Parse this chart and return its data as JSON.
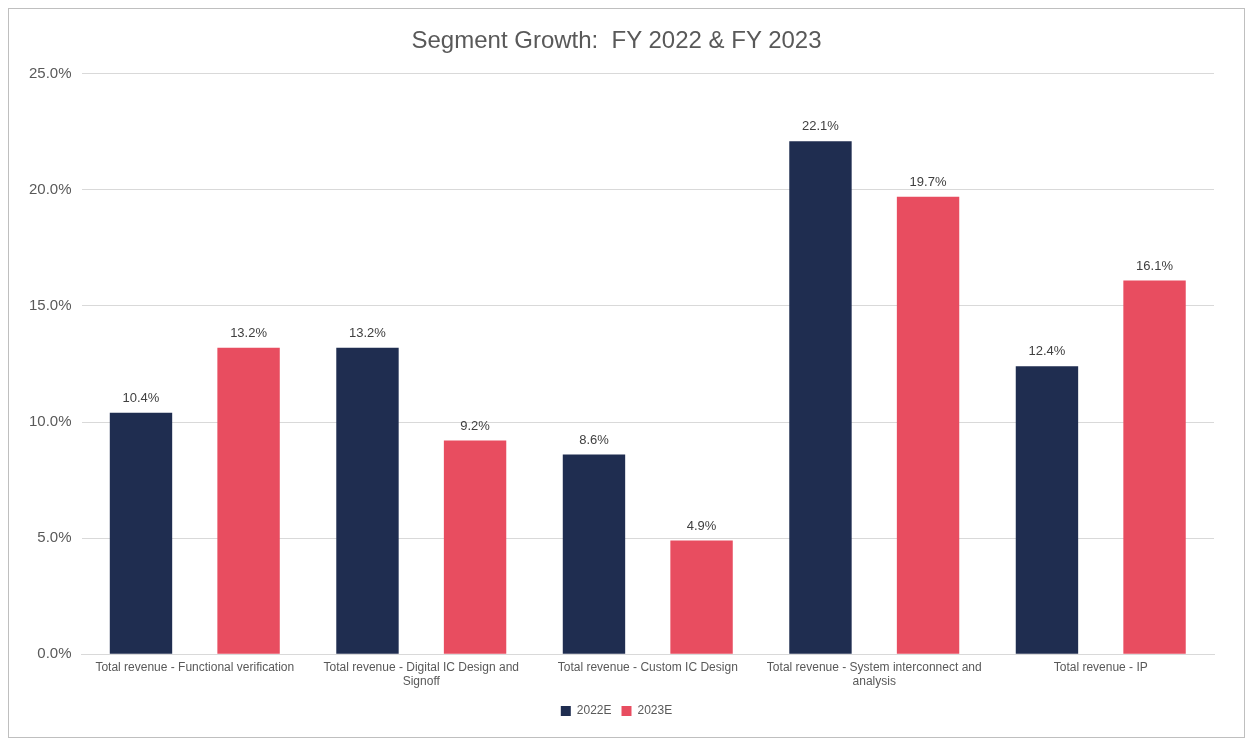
{
  "chart_data": {
    "type": "bar",
    "title": "Segment Growth:  FY 2022 & FY 2023",
    "categories": [
      "Total revenue - Functional verification",
      "Total revenue - Digital IC Design and Signoff",
      "Total revenue - Custom IC Design",
      "Total revenue - System interconnect and analysis",
      "Total revenue - IP"
    ],
    "series": [
      {
        "name": "2022E",
        "color": "#1f2d50",
        "values": [
          10.4,
          13.2,
          8.6,
          22.1,
          12.4
        ],
        "value_labels": [
          "10.4%",
          "13.2%",
          "8.6%",
          "22.1%",
          "12.4%"
        ]
      },
      {
        "name": "2023E",
        "color": "#e84d60",
        "values": [
          13.2,
          9.2,
          4.9,
          19.7,
          16.1
        ],
        "value_labels": [
          "13.2%",
          "9.2%",
          "4.9%",
          "19.7%",
          "16.1%"
        ]
      }
    ],
    "ylim": [
      0,
      25
    ],
    "yticks": [
      {
        "value": 0,
        "label": "0.0%"
      },
      {
        "value": 5,
        "label": "5.0%"
      },
      {
        "value": 10,
        "label": "10.0%"
      },
      {
        "value": 15,
        "label": "15.0%"
      },
      {
        "value": 20,
        "label": "20.0%"
      },
      {
        "value": 25,
        "label": "25.0%"
      }
    ],
    "grid": "y",
    "legend": "bottom"
  }
}
